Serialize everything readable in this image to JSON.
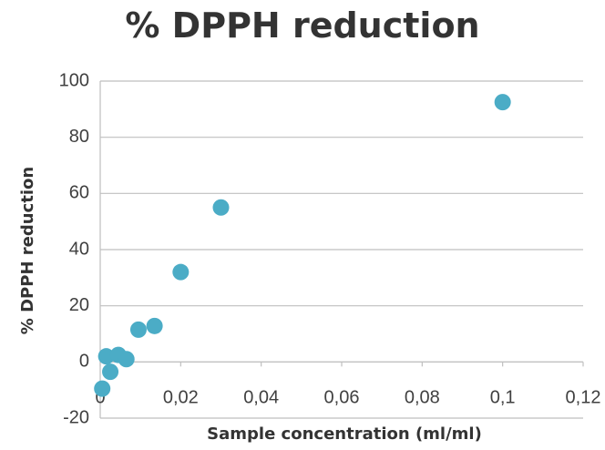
{
  "chart_data": {
    "type": "scatter",
    "title": "% DPPH reduction",
    "xlabel": "Sample concentration (ml/ml)",
    "ylabel": "% DPPH reduction",
    "xlim": [
      0,
      0.12
    ],
    "ylim": [
      -20,
      100
    ],
    "x_ticks": [
      0,
      0.02,
      0.04,
      0.06,
      0.08,
      0.1,
      0.12
    ],
    "x_tick_labels": [
      "0",
      "0,02",
      "0,04",
      "0,06",
      "0,08",
      "0,1",
      "0,12"
    ],
    "y_ticks": [
      -20,
      0,
      20,
      40,
      60,
      80,
      100
    ],
    "y_tick_labels": [
      "-20",
      "0",
      "20",
      "40",
      "60",
      "80",
      "100"
    ],
    "grid": "horizontal",
    "marker_color": "#4bacc6",
    "points": [
      {
        "x": 0.0005,
        "y": -9.5
      },
      {
        "x": 0.0015,
        "y": 2
      },
      {
        "x": 0.0025,
        "y": -3.5
      },
      {
        "x": 0.0045,
        "y": 2.5
      },
      {
        "x": 0.0065,
        "y": 1
      },
      {
        "x": 0.0095,
        "y": 11.5
      },
      {
        "x": 0.0135,
        "y": 12.8
      },
      {
        "x": 0.02,
        "y": 32
      },
      {
        "x": 0.03,
        "y": 55
      },
      {
        "x": 0.1,
        "y": 92.5
      }
    ]
  }
}
